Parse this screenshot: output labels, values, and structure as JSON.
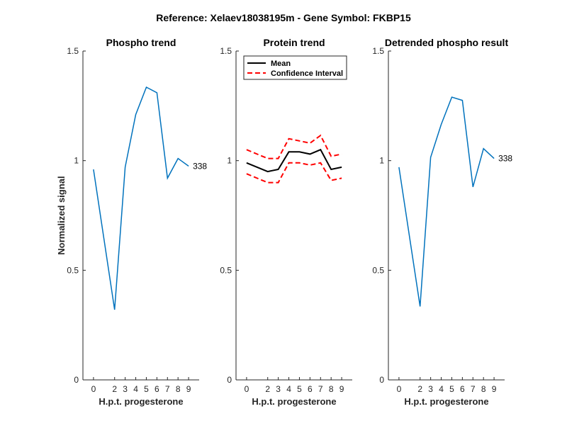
{
  "suptitle": "Reference:  Xelaev18038195m - Gene Symbol:  FKBP15",
  "chart_data": [
    {
      "type": "line",
      "title": "Phospho trend",
      "xlabel": "H.p.t. progesterone",
      "ylabel": "Normalized signal",
      "x": [
        0,
        2,
        3,
        4,
        5,
        6,
        7,
        8,
        9
      ],
      "x_ticks": [
        "0",
        "2",
        "3",
        "4",
        "5",
        "6",
        "7",
        "8",
        "9"
      ],
      "ylim": [
        0,
        1.5
      ],
      "y_ticks": [
        "0",
        "0.5",
        "1",
        "1.5"
      ],
      "series": [
        {
          "values": [
            0.96,
            0.32,
            0.97,
            1.21,
            1.335,
            1.31,
            0.92,
            1.01,
            0.975
          ],
          "color": "#0072BD",
          "style": "solid",
          "end_label": "338"
        }
      ]
    },
    {
      "type": "line",
      "title": "Protein trend",
      "xlabel": "H.p.t. progesterone",
      "ylabel": "",
      "x": [
        0,
        2,
        3,
        4,
        5,
        6,
        7,
        8,
        9
      ],
      "x_ticks": [
        "0",
        "2",
        "3",
        "4",
        "5",
        "6",
        "7",
        "8",
        "9"
      ],
      "ylim": [
        0,
        1.5
      ],
      "y_ticks": [
        "0",
        "0.5",
        "1",
        "1.5"
      ],
      "legend": {
        "location": "top-left",
        "entries": [
          "Mean",
          "Confidence Interval"
        ]
      },
      "series": [
        {
          "name": "Mean",
          "values": [
            0.99,
            0.95,
            0.96,
            1.04,
            1.04,
            1.03,
            1.05,
            0.96,
            0.97
          ],
          "color": "#000000",
          "style": "solid"
        },
        {
          "name": "Confidence Interval",
          "values": [
            1.05,
            1.01,
            1.01,
            1.1,
            1.09,
            1.08,
            1.115,
            1.02,
            1.03
          ],
          "color": "#FF0000",
          "style": "dashed"
        },
        {
          "name": "Confidence Interval",
          "values": [
            0.94,
            0.9,
            0.9,
            0.99,
            0.99,
            0.98,
            0.99,
            0.91,
            0.92
          ],
          "color": "#FF0000",
          "style": "dashed"
        }
      ]
    },
    {
      "type": "line",
      "title": "Detrended phospho result",
      "xlabel": "H.p.t. progesterone",
      "ylabel": "",
      "x": [
        0,
        2,
        3,
        4,
        5,
        6,
        7,
        8,
        9
      ],
      "x_ticks": [
        "0",
        "2",
        "3",
        "4",
        "5",
        "6",
        "7",
        "8",
        "9"
      ],
      "ylim": [
        0,
        1.5
      ],
      "y_ticks": [
        "0",
        "0.5",
        "1",
        "1.5"
      ],
      "series": [
        {
          "values": [
            0.97,
            0.335,
            1.015,
            1.165,
            1.29,
            1.275,
            0.88,
            1.055,
            1.01
          ],
          "color": "#0072BD",
          "style": "solid",
          "end_label": "338"
        }
      ]
    }
  ]
}
